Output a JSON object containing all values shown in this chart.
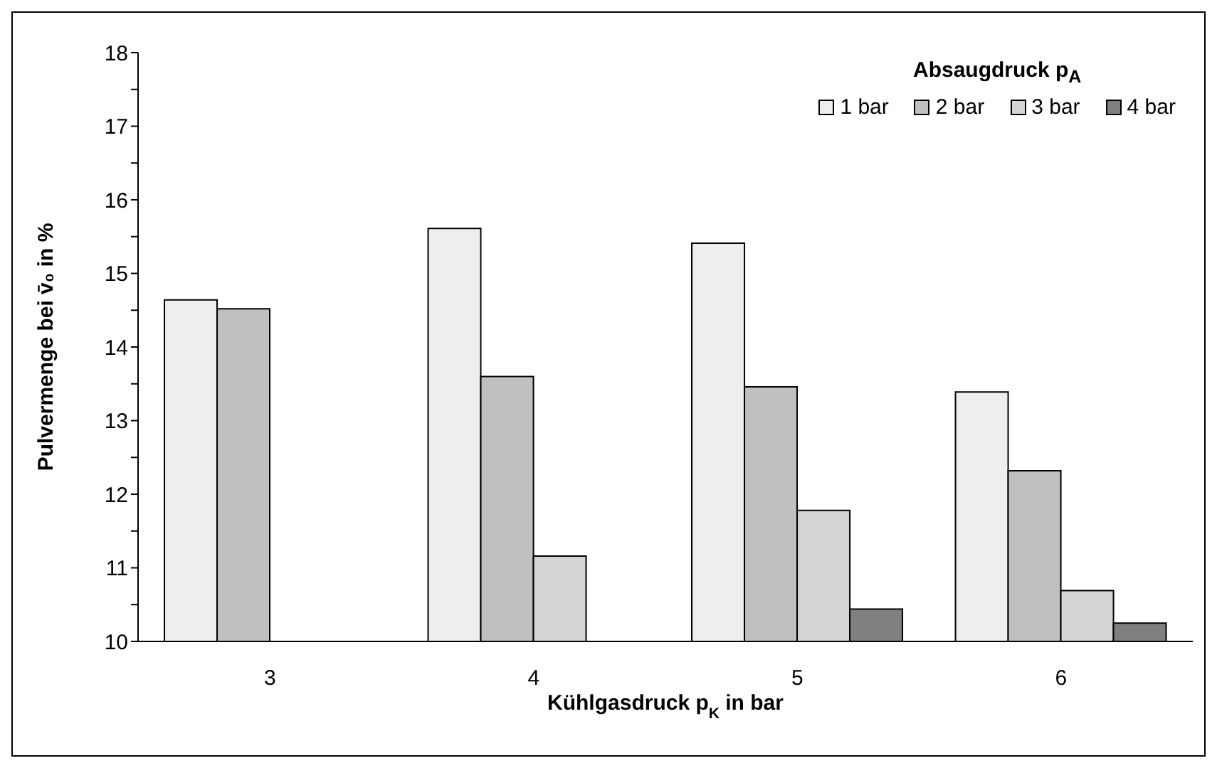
{
  "chart_data": {
    "type": "bar",
    "categories": [
      "3",
      "4",
      "5",
      "6"
    ],
    "xlabel": "Kühlgasdruck p$_{K}$ in bar",
    "ylabel": "Pulvermenge bei v̄₀ in %",
    "legend_title": "Absaugdruck p$_{A}$",
    "series": [
      {
        "name": "1 bar",
        "color": "#eeeeee",
        "values": [
          14.64,
          15.61,
          15.41,
          13.39
        ]
      },
      {
        "name": "2 bar",
        "color": "#c0c0c0",
        "values": [
          14.52,
          13.6,
          13.46,
          12.32
        ]
      },
      {
        "name": "3 bar",
        "color": "#d4d4d4",
        "values": [
          null,
          11.16,
          11.78,
          10.69
        ]
      },
      {
        "name": "4 bar",
        "color": "#808080",
        "values": [
          null,
          null,
          10.44,
          10.25
        ]
      }
    ],
    "ylim": [
      10,
      18
    ],
    "yticks": [
      10,
      {
        "value": 10.5,
        "label": null
      },
      11,
      {
        "value": 11.5,
        "label": null
      },
      12,
      {
        "value": 12.5,
        "label": null
      },
      13,
      {
        "value": 13.5,
        "label": null
      },
      14,
      {
        "value": 14.5,
        "label": null
      },
      15,
      {
        "value": 15.5,
        "label": null
      },
      16,
      {
        "value": 16.5,
        "label": null
      },
      17,
      {
        "value": 17.5,
        "label": null
      },
      18
    ],
    "grid": false,
    "legend": "top right"
  }
}
